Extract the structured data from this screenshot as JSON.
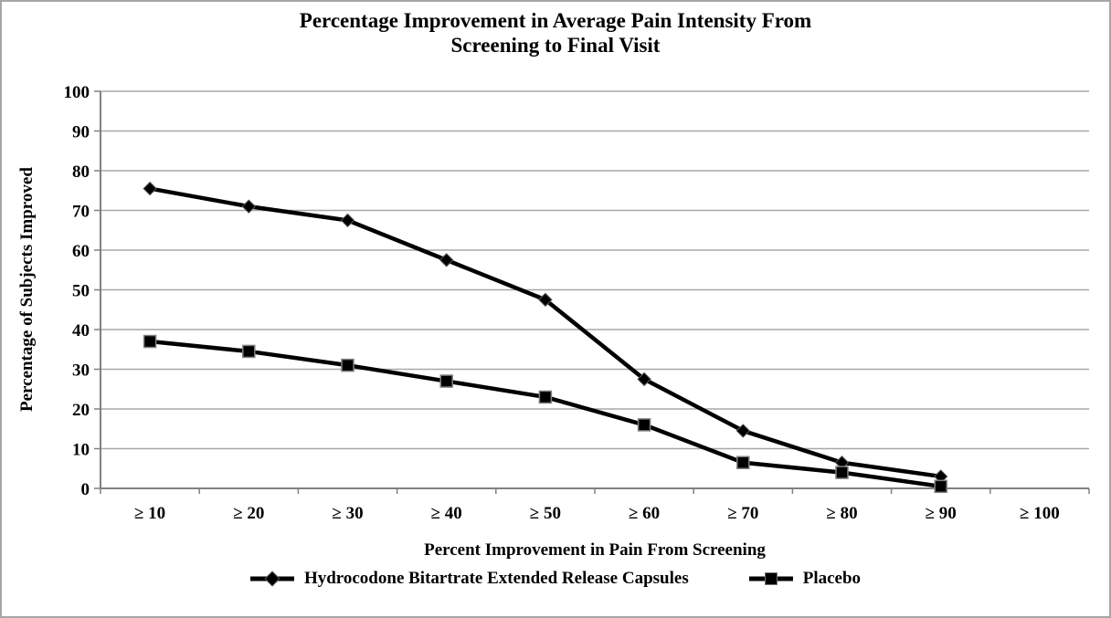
{
  "figure": {
    "background": "#ffffff",
    "border_color": "#a6a6a6"
  },
  "chart_data": {
    "type": "line",
    "title": "Percentage Improvement in Average Pain Intensity From Screening to Final Visit",
    "title_lines": [
      "Percentage Improvement in Average Pain Intensity From",
      "Screening to Final Visit"
    ],
    "xlabel": "Percent Improvement in Pain From Screening",
    "ylabel": "Percentage of Subjects Improved",
    "categories": [
      "≥ 10",
      "≥ 20",
      "≥ 30",
      "≥ 40",
      "≥ 50",
      "≥ 60",
      "≥ 70",
      "≥ 80",
      "≥ 90",
      "≥ 100"
    ],
    "yticks": [
      0,
      10,
      20,
      30,
      40,
      50,
      60,
      70,
      80,
      90,
      100
    ],
    "ylim": [
      0,
      100
    ],
    "grid": "horizontal",
    "legend_position": "bottom",
    "series": [
      {
        "name": "Hydrocodone Bitartrate Extended Release Capsules",
        "marker": "diamond",
        "color": "#000000",
        "values": [
          75.5,
          71,
          67.5,
          57.5,
          47.5,
          27.5,
          14.5,
          6.5,
          3,
          null
        ]
      },
      {
        "name": "Placebo",
        "marker": "square",
        "color": "#000000",
        "values": [
          37,
          34.5,
          31,
          27,
          23,
          16,
          6.5,
          4,
          0.5,
          null
        ]
      }
    ],
    "colors": {
      "gridline": "#a8a8a8",
      "axis": "#808080",
      "series_line": "#000000",
      "text": "#000000"
    }
  }
}
